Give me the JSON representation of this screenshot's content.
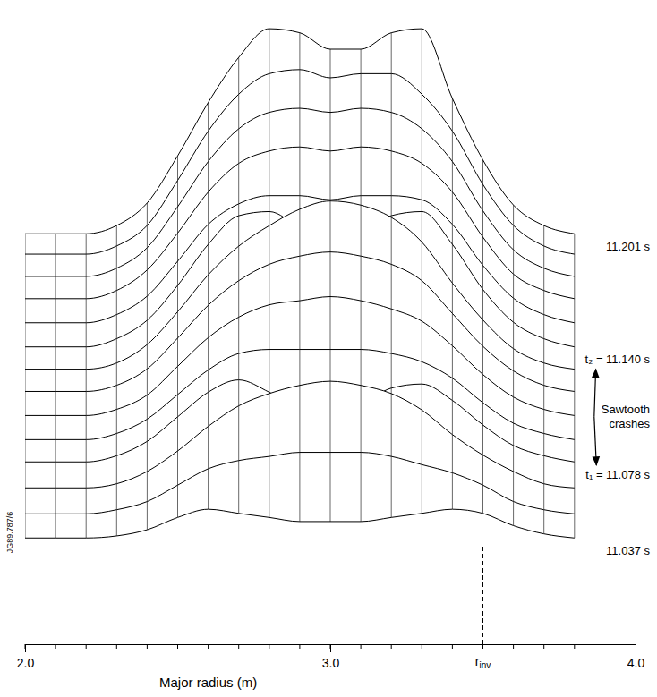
{
  "chart_data": {
    "type": "waterfall",
    "x_label": "Major radius (m)",
    "x": [
      2.0,
      2.1,
      2.2,
      2.3,
      2.4,
      2.5,
      2.6,
      2.7,
      2.8,
      2.9,
      3.0,
      3.1,
      3.2,
      3.3,
      3.4,
      3.5,
      3.6,
      3.7,
      3.8
    ],
    "xlim": [
      2,
      4
    ],
    "xticks": [
      {
        "value": 2,
        "label": "2.0"
      },
      {
        "value": 3,
        "label": "3.0"
      },
      {
        "value": 4,
        "label": "4.0"
      }
    ],
    "ylim": [
      0,
      6
    ],
    "tlim": [
      11.037,
      11.201
    ],
    "tick_labels": "x",
    "color": "#000000",
    "series": [
      {
        "time": 11.037,
        "values": [
          0.3,
          0.3,
          0.3,
          0.35,
          0.5,
          0.8,
          1.0,
          0.9,
          0.8,
          0.7,
          0.7,
          0.7,
          0.8,
          0.9,
          1.0,
          0.9,
          0.6,
          0.4,
          0.3
        ]
      },
      {
        "time": 11.05,
        "values": [
          0.3,
          0.3,
          0.3,
          0.4,
          0.6,
          1.0,
          1.4,
          1.6,
          1.7,
          1.8,
          1.8,
          1.8,
          1.7,
          1.5,
          1.3,
          1.0,
          0.6,
          0.4,
          0.3
        ]
      },
      {
        "time": 11.064,
        "values": [
          0.3,
          0.3,
          0.3,
          0.4,
          0.7,
          1.2,
          1.8,
          2.3,
          2.6,
          2.8,
          2.9,
          2.8,
          2.6,
          2.2,
          1.6,
          1.1,
          0.7,
          0.4,
          0.3
        ]
      },
      {
        "time": 11.078,
        "values": [
          0.3,
          0.3,
          0.3,
          0.45,
          0.8,
          1.4,
          2.0,
          2.3,
          2.0,
          1.6,
          1.5,
          1.7,
          2.1,
          2.2,
          1.8,
          1.2,
          0.7,
          0.45,
          0.3
        ]
      },
      {
        "time": 11.09,
        "values": [
          0.3,
          0.3,
          0.3,
          0.45,
          0.8,
          1.4,
          2.0,
          2.4,
          2.5,
          2.5,
          2.5,
          2.5,
          2.4,
          2.2,
          1.8,
          1.2,
          0.7,
          0.45,
          0.3
        ]
      },
      {
        "time": 11.103,
        "values": [
          0.3,
          0.3,
          0.3,
          0.45,
          0.8,
          1.5,
          2.2,
          2.7,
          3.0,
          3.1,
          3.2,
          3.1,
          2.9,
          2.6,
          2.0,
          1.3,
          0.75,
          0.45,
          0.3
        ]
      },
      {
        "time": 11.116,
        "values": [
          0.3,
          0.3,
          0.3,
          0.45,
          0.85,
          1.6,
          2.4,
          3.0,
          3.4,
          3.6,
          3.7,
          3.6,
          3.4,
          3.0,
          2.2,
          1.4,
          0.8,
          0.45,
          0.3
        ]
      },
      {
        "time": 11.128,
        "values": [
          0.3,
          0.3,
          0.3,
          0.45,
          0.9,
          1.7,
          2.6,
          3.3,
          3.8,
          4.2,
          4.4,
          4.3,
          4.0,
          3.4,
          2.4,
          1.5,
          0.8,
          0.45,
          0.3
        ]
      },
      {
        "time": 11.14,
        "values": [
          0.3,
          0.3,
          0.3,
          0.5,
          0.95,
          1.8,
          2.8,
          3.5,
          3.6,
          3.2,
          2.8,
          3.0,
          3.5,
          3.6,
          2.8,
          1.7,
          0.9,
          0.5,
          0.3
        ]
      },
      {
        "time": 11.153,
        "values": [
          0.3,
          0.3,
          0.3,
          0.5,
          0.95,
          1.8,
          2.7,
          3.2,
          3.4,
          3.4,
          3.3,
          3.4,
          3.4,
          3.3,
          2.7,
          1.7,
          0.9,
          0.5,
          0.3
        ]
      },
      {
        "time": 11.166,
        "values": [
          0.3,
          0.3,
          0.3,
          0.5,
          1.0,
          1.9,
          2.9,
          3.6,
          3.9,
          4.0,
          3.9,
          4.0,
          3.9,
          3.6,
          2.9,
          1.8,
          0.9,
          0.5,
          0.3
        ]
      },
      {
        "time": 11.178,
        "values": [
          0.3,
          0.3,
          0.3,
          0.5,
          1.0,
          2.0,
          3.1,
          3.9,
          4.3,
          4.4,
          4.3,
          4.4,
          4.3,
          3.9,
          3.1,
          1.9,
          0.95,
          0.5,
          0.3
        ]
      },
      {
        "time": 11.19,
        "values": [
          0.3,
          0.3,
          0.3,
          0.5,
          1.0,
          2.1,
          3.3,
          4.2,
          4.7,
          4.8,
          4.6,
          4.7,
          4.7,
          4.2,
          3.3,
          2.0,
          1.0,
          0.5,
          0.3
        ]
      },
      {
        "time": 11.201,
        "values": [
          0.3,
          0.3,
          0.3,
          0.5,
          1.05,
          2.2,
          3.5,
          4.6,
          5.3,
          5.2,
          4.8,
          4.8,
          5.2,
          5.3,
          3.6,
          2.1,
          1.0,
          0.5,
          0.3
        ]
      }
    ],
    "time_labels": [
      {
        "text": "11.201 s",
        "time": 11.201
      },
      {
        "text": "t₂ = 11.140 s",
        "time": 11.14
      },
      {
        "text": "t₁ = 11.078 s",
        "time": 11.078
      },
      {
        "text": "11.037 s",
        "time": 11.037
      }
    ],
    "annotation": {
      "text": "Sawtooth crashes",
      "targets": [
        1,
        2
      ]
    },
    "marker_line": {
      "label": "r",
      "subscript": "inv",
      "x": 3.5
    },
    "figure_code": "JG89.787/6"
  }
}
